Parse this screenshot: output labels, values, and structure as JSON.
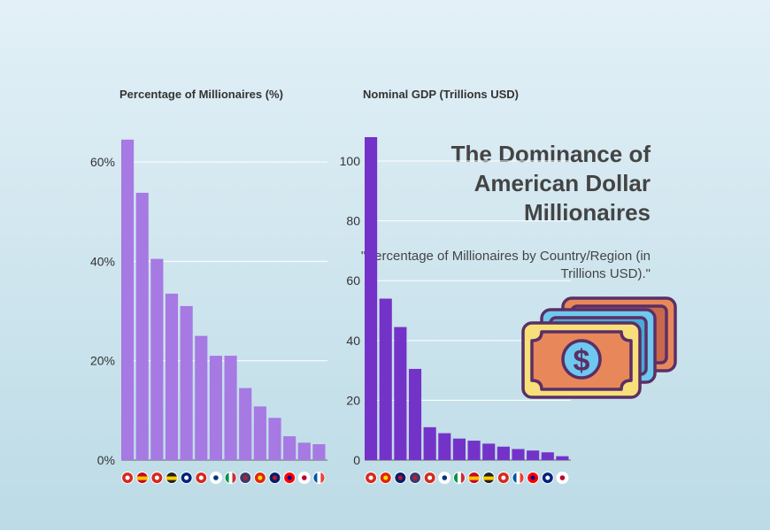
{
  "header": {
    "title": "The Dominance of American Dollar Millionaires",
    "subtitle": "\"Percentage of Millionaires by Country/Region (in Trillions USD).\""
  },
  "chart_data": [
    {
      "type": "bar",
      "title": "Percentage of Millionaires (%)",
      "categories": [
        "Switzerland",
        "Spain",
        "Canada",
        "Germany",
        "Australia",
        "Canada",
        "South Korea",
        "Italy",
        "United States",
        "China",
        "United Kingdom",
        "Taiwan",
        "Japan",
        "France"
      ],
      "values": [
        64.5,
        53.8,
        40.5,
        33.5,
        31.0,
        25.0,
        21.0,
        21.0,
        14.5,
        10.8,
        8.5,
        4.8,
        3.5,
        3.2
      ],
      "ylim": [
        0,
        65
      ],
      "yticks": [
        0,
        20,
        40,
        60
      ],
      "ytick_labels": [
        "0%",
        "20%",
        "40%",
        "60%"
      ],
      "grid": true,
      "color": "#a679e3"
    },
    {
      "type": "bar",
      "title": "Nominal GDP (Trillions USD)",
      "categories": [
        "Canada",
        "China",
        "United Kingdom",
        "United States",
        "Canada",
        "South Korea",
        "Italy",
        "Spain",
        "Germany",
        "Switzerland",
        "France",
        "Taiwan",
        "Australia",
        "Japan"
      ],
      "values": [
        108,
        54,
        44.5,
        30.5,
        11,
        9,
        7.2,
        6.5,
        5.5,
        4.5,
        3.7,
        3.2,
        2.6,
        1.3
      ],
      "ylim": [
        0,
        108
      ],
      "yticks": [
        0,
        20,
        40,
        60,
        80,
        100
      ],
      "ytick_labels": [
        "0",
        "20",
        "40",
        "60",
        "80",
        "100"
      ],
      "grid": true,
      "color": "#7433c8"
    }
  ],
  "flags": {
    "Switzerland": [
      "#d52b1e",
      "#ffffff"
    ],
    "Spain": [
      "#c60b1e",
      "#ffc400"
    ],
    "Canada": [
      "#d52b1e",
      "#ffffff"
    ],
    "Germany": [
      "#222222",
      "#ffce00"
    ],
    "Australia": [
      "#00247d",
      "#ffffff"
    ],
    "South Korea": [
      "#ffffff",
      "#003478"
    ],
    "Italy": [
      "#009246",
      "#ce2b37"
    ],
    "United States": [
      "#3c3b6e",
      "#b22234"
    ],
    "China": [
      "#de2910",
      "#ffde00"
    ],
    "United Kingdom": [
      "#012169",
      "#c8102e"
    ],
    "Taiwan": [
      "#fe0000",
      "#000095"
    ],
    "Japan": [
      "#ffffff",
      "#bc002d"
    ],
    "France": [
      "#0055a4",
      "#ef4135"
    ]
  }
}
